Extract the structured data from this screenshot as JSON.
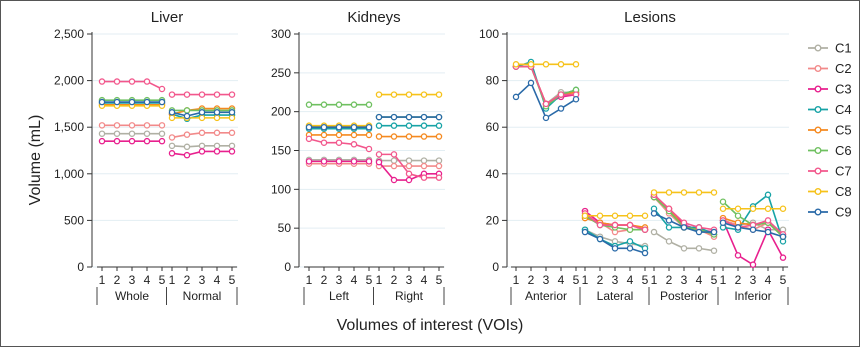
{
  "figure": {
    "ylabel": "Volume (mL)",
    "xlabel": "Volumes of interest (VOIs)"
  },
  "legend": [
    {
      "name": "C1",
      "color": "#b0b0a4"
    },
    {
      "name": "C2",
      "color": "#f28a8a"
    },
    {
      "name": "C3",
      "color": "#e8208e"
    },
    {
      "name": "C4",
      "color": "#17a3a6"
    },
    {
      "name": "C5",
      "color": "#f5891f"
    },
    {
      "name": "C6",
      "color": "#6fc060"
    },
    {
      "name": "C7",
      "color": "#f2578c"
    },
    {
      "name": "C8",
      "color": "#f6c21a"
    },
    {
      "name": "C9",
      "color": "#2a6aa8"
    }
  ],
  "chart_data": [
    {
      "type": "line",
      "title": "Liver",
      "ylim": [
        0,
        2500
      ],
      "yticks": [
        0,
        500,
        1000,
        1500,
        2000,
        2500
      ],
      "ytick_labels": [
        "0",
        "500",
        "1,000",
        "1,500",
        "2,000",
        "2,500"
      ],
      "x": [
        "1",
        "2",
        "3",
        "4",
        "5"
      ],
      "groups": [
        "Whole",
        "Normal"
      ],
      "grid": true,
      "series": [
        {
          "name": "C1",
          "values": [
            [
              1430,
              1430,
              1430,
              1430,
              1430
            ],
            [
              1300,
              1290,
              1300,
              1300,
              1300
            ]
          ]
        },
        {
          "name": "C2",
          "values": [
            [
              1520,
              1520,
              1520,
              1520,
              1520
            ],
            [
              1390,
              1420,
              1440,
              1440,
              1440
            ]
          ]
        },
        {
          "name": "C3",
          "values": [
            [
              1350,
              1350,
              1350,
              1350,
              1350
            ],
            [
              1220,
              1200,
              1240,
              1240,
              1240
            ]
          ]
        },
        {
          "name": "C4",
          "values": [
            [
              1760,
              1760,
              1760,
              1760,
              1760
            ],
            [
              1640,
              1590,
              1630,
              1630,
              1630
            ]
          ]
        },
        {
          "name": "C5",
          "values": [
            [
              1740,
              1740,
              1740,
              1740,
              1740
            ],
            [
              1640,
              1680,
              1700,
              1700,
              1700
            ]
          ]
        },
        {
          "name": "C6",
          "values": [
            [
              1790,
              1790,
              1790,
              1790,
              1790
            ],
            [
              1680,
              1680,
              1680,
              1680,
              1680
            ]
          ]
        },
        {
          "name": "C7",
          "values": [
            [
              1990,
              1990,
              1990,
              1990,
              1910
            ],
            [
              1850,
              1850,
              1850,
              1850,
              1850
            ]
          ]
        },
        {
          "name": "C8",
          "values": [
            [
              1730,
              1730,
              1730,
              1730,
              1730
            ],
            [
              1600,
              1600,
              1600,
              1600,
              1600
            ]
          ]
        },
        {
          "name": "C9",
          "values": [
            [
              1770,
              1770,
              1770,
              1770,
              1770
            ],
            [
              1660,
              1620,
              1660,
              1660,
              1660
            ]
          ]
        }
      ]
    },
    {
      "type": "line",
      "title": "Kidneys",
      "ylim": [
        0,
        300
      ],
      "yticks": [
        0,
        50,
        100,
        150,
        200,
        250,
        300
      ],
      "ytick_labels": [
        "0",
        "50",
        "100",
        "150",
        "200",
        "250",
        "300"
      ],
      "x": [
        "1",
        "2",
        "3",
        "4",
        "5"
      ],
      "groups": [
        "Left",
        "Right"
      ],
      "grid": true,
      "series": [
        {
          "name": "C1",
          "values": [
            [
              138,
              138,
              138,
              138,
              138
            ],
            [
              137,
              137,
              137,
              137,
              137
            ]
          ]
        },
        {
          "name": "C2",
          "values": [
            [
              133,
              133,
              133,
              133,
              133
            ],
            [
              130,
              130,
              130,
              130,
              130
            ]
          ]
        },
        {
          "name": "C3",
          "values": [
            [
              136,
              136,
              136,
              136,
              136
            ],
            [
              135,
              112,
              112,
              120,
              120
            ]
          ]
        },
        {
          "name": "C4",
          "values": [
            [
              178,
              178,
              178,
              178,
              178
            ],
            [
              182,
              182,
              182,
              182,
              182
            ]
          ]
        },
        {
          "name": "C5",
          "values": [
            [
              170,
              170,
              170,
              170,
              170
            ],
            [
              168,
              168,
              168,
              168,
              168
            ]
          ]
        },
        {
          "name": "C6",
          "values": [
            [
              209,
              209,
              209,
              209,
              209
            ],
            [
              193,
              193,
              193,
              193,
              193
            ]
          ]
        },
        {
          "name": "C7",
          "values": [
            [
              165,
              160,
              160,
              158,
              152
            ],
            [
              145,
              145,
              120,
              115,
              115
            ]
          ]
        },
        {
          "name": "C8",
          "values": [
            [
              182,
              182,
              182,
              182,
              182
            ],
            [
              222,
              222,
              222,
              222,
              222
            ]
          ]
        },
        {
          "name": "C9",
          "values": [
            [
              180,
              180,
              180,
              180,
              180
            ],
            [
              193,
              193,
              193,
              193,
              193
            ]
          ]
        }
      ]
    },
    {
      "type": "line",
      "title": "Lesions",
      "ylim": [
        0,
        100
      ],
      "yticks": [
        0,
        20,
        40,
        60,
        80,
        100
      ],
      "ytick_labels": [
        "0",
        "20",
        "40",
        "60",
        "80",
        "100"
      ],
      "x": [
        "1",
        "2",
        "3",
        "4",
        "5"
      ],
      "groups": [
        "Anterior",
        "Lateral",
        "Posterior",
        "Inferior"
      ],
      "grid": true,
      "series": [
        {
          "name": "C1",
          "values": [
            [
              86,
              86,
              70,
              75,
              75
            ],
            [
              16,
              13,
              11,
              10,
              9
            ],
            [
              15,
              11,
              8,
              8,
              7
            ],
            [
              20,
              18,
              19,
              16,
              16
            ]
          ]
        },
        {
          "name": "C2",
          "values": [
            [
              86,
              86,
              70,
              74,
              75
            ],
            [
              24,
              19,
              15,
              16,
              16
            ],
            [
              30,
              23,
              17,
              16,
              13
            ],
            [
              20,
              18,
              16,
              19,
              14
            ]
          ]
        },
        {
          "name": "C3",
          "values": [
            [
              86,
              86,
              70,
              73,
              74
            ],
            [
              24,
              19,
              18,
              18,
              16
            ],
            [
              30,
              25,
              18,
              16,
              15
            ],
            [
              20,
              5,
              1,
              16,
              4
            ]
          ]
        },
        {
          "name": "C4",
          "values": [
            [
              86,
              88,
              68,
              74,
              76
            ],
            [
              16,
              12,
              9,
              11,
              8
            ],
            [
              25,
              17,
              17,
              17,
              14
            ],
            [
              17,
              16,
              26,
              31,
              11
            ]
          ]
        },
        {
          "name": "C5",
          "values": [
            [
              86,
              86,
              70,
              74,
              75
            ],
            [
              21,
              19,
              18,
              18,
              17
            ],
            [
              30,
              25,
              17,
              16,
              14
            ],
            [
              21,
              19,
              18,
              19,
              13
            ]
          ]
        },
        {
          "name": "C6",
          "values": [
            [
              86,
              86,
              69,
              74,
              76
            ],
            [
              22,
              18,
              17,
              16,
              16
            ],
            [
              30,
              24,
              17,
              16,
              14
            ],
            [
              28,
              22,
              18,
              19,
              13
            ]
          ]
        },
        {
          "name": "C7",
          "values": [
            [
              86,
              86,
              70,
              74,
              74
            ],
            [
              23,
              18,
              18,
              18,
              16
            ],
            [
              31,
              25,
              19,
              17,
              16
            ],
            [
              20,
              17,
              18,
              20,
              14
            ]
          ]
        },
        {
          "name": "C8",
          "values": [
            [
              87,
              87,
              87,
              87,
              87
            ],
            [
              22,
              22,
              22,
              22,
              22
            ],
            [
              32,
              32,
              32,
              32,
              32
            ],
            [
              25,
              25,
              25,
              25,
              25
            ]
          ]
        },
        {
          "name": "C9",
          "values": [
            [
              73,
              79,
              64,
              68,
              72
            ],
            [
              15,
              12,
              8,
              8,
              6
            ],
            [
              23,
              20,
              17,
              15,
              15
            ],
            [
              19,
              17,
              16,
              15,
              13
            ]
          ]
        }
      ]
    }
  ]
}
